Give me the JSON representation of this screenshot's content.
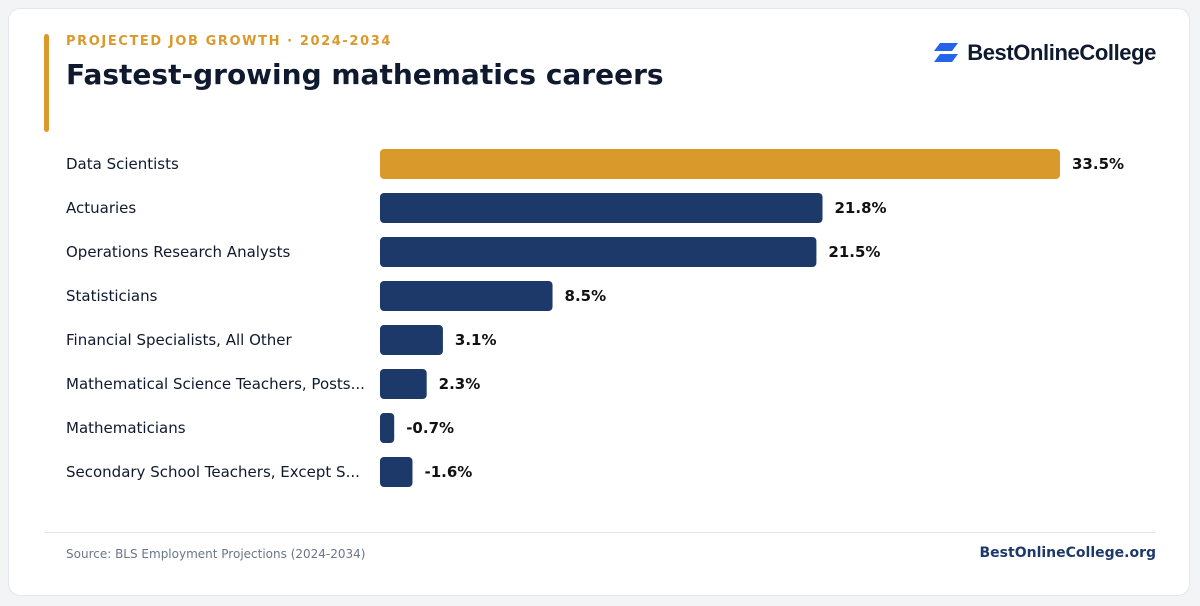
{
  "header": {
    "eyebrow": "PROJECTED JOB GROWTH · 2024-2034",
    "title": "Fastest-growing mathematics careers"
  },
  "brand": {
    "name": "BestOnlineCollege",
    "icon": "bestonlinecollege-logo-icon",
    "color": "#2563eb"
  },
  "footer": {
    "source": "Source: BLS Employment Projections (2024-2034)",
    "site": "BestOnlineCollege.org"
  },
  "colors": {
    "highlight": "#d99a2b",
    "bar": "#1d3969",
    "text": "#0f1a2e"
  },
  "chart_data": {
    "type": "bar",
    "orientation": "horizontal",
    "categories": [
      "Data Scientists",
      "Actuaries",
      "Operations Research Analysts",
      "Statisticians",
      "Financial Specialists, All Other",
      "Mathematical Science Teachers, Posts...",
      "Mathematicians",
      "Secondary School Teachers, Except S..."
    ],
    "values": [
      33.5,
      21.8,
      21.5,
      8.5,
      3.1,
      2.3,
      -0.7,
      -1.6
    ],
    "value_labels": [
      "33.5%",
      "21.8%",
      "21.5%",
      "8.5%",
      "3.1%",
      "2.3%",
      "-0.7%",
      "-1.6%"
    ],
    "highlight_index": 0,
    "unit": "%",
    "grid": false,
    "legend": "none"
  }
}
